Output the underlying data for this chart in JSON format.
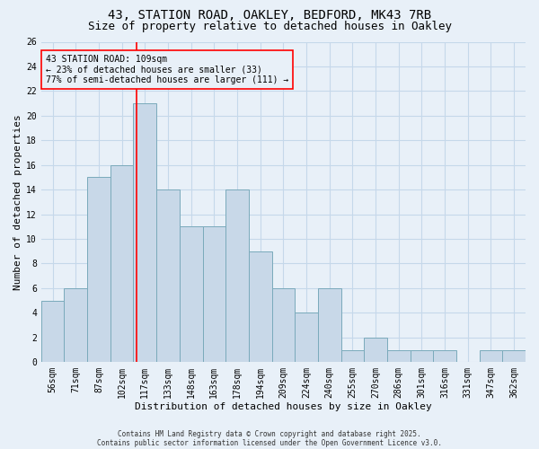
{
  "title1": "43, STATION ROAD, OAKLEY, BEDFORD, MK43 7RB",
  "title2": "Size of property relative to detached houses in Oakley",
  "xlabel": "Distribution of detached houses by size in Oakley",
  "ylabel": "Number of detached properties",
  "categories": [
    "56sqm",
    "71sqm",
    "87sqm",
    "102sqm",
    "117sqm",
    "133sqm",
    "148sqm",
    "163sqm",
    "178sqm",
    "194sqm",
    "209sqm",
    "224sqm",
    "240sqm",
    "255sqm",
    "270sqm",
    "286sqm",
    "301sqm",
    "316sqm",
    "331sqm",
    "347sqm",
    "362sqm"
  ],
  "values": [
    5,
    6,
    15,
    16,
    21,
    14,
    11,
    11,
    14,
    9,
    6,
    4,
    6,
    1,
    2,
    1,
    1,
    1,
    0,
    1,
    1
  ],
  "bar_color": "#c8d8e8",
  "bar_edge_color": "#7aaabb",
  "grid_color": "#c5d8ea",
  "background_color": "#e8f0f8",
  "annotation_line1": "43 STATION ROAD: 109sqm",
  "annotation_line2": "← 23% of detached houses are smaller (33)",
  "annotation_line3": "77% of semi-detached houses are larger (111) →",
  "red_line_x": 3.65,
  "ylim": [
    0,
    26
  ],
  "yticks": [
    0,
    2,
    4,
    6,
    8,
    10,
    12,
    14,
    16,
    18,
    20,
    22,
    24,
    26
  ],
  "footer1": "Contains HM Land Registry data © Crown copyright and database right 2025.",
  "footer2": "Contains public sector information licensed under the Open Government Licence v3.0.",
  "title_fontsize": 10,
  "subtitle_fontsize": 9,
  "tick_fontsize": 7,
  "label_fontsize": 8,
  "annotation_fontsize": 7,
  "footer_fontsize": 5.5
}
